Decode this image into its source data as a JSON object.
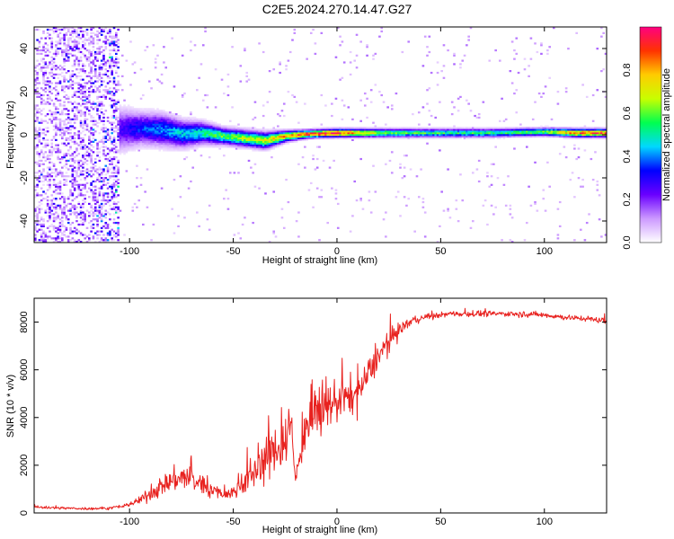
{
  "title": "C2E5.2024.270.14.47.G27",
  "chart_data": [
    {
      "type": "heatmap",
      "xlabel": "Height of straight line (km)",
      "ylabel": "Frequency (Hz)",
      "xlim": [
        -146,
        130
      ],
      "ylim": [
        -50,
        50
      ],
      "xticks": [
        -100,
        -50,
        0,
        50,
        100
      ],
      "yticks": [
        -40,
        -20,
        0,
        20,
        40
      ],
      "colorbar": {
        "label": "Normalized spectral amplitude",
        "range": [
          0.0,
          1.0
        ],
        "ticks": [
          0.0,
          0.2,
          0.4,
          0.6,
          0.8
        ],
        "tick_labels": [
          "0.0",
          "0.2",
          "0.4",
          "0.6",
          "0.8"
        ],
        "colormap": [
          "#ffffff",
          "#cc99ff",
          "#6a00ff",
          "#0000ff",
          "#00d8ff",
          "#00ff50",
          "#c8ff00",
          "#ffcc00",
          "#ff3300",
          "#ff0080"
        ]
      },
      "ridge": [
        {
          "x": -146,
          "freq_center": 0.0,
          "freq_spread": 45.0,
          "amplitude": 0.15
        },
        {
          "x": -120,
          "freq_center": 1.0,
          "freq_spread": 40.0,
          "amplitude": 0.18
        },
        {
          "x": -105,
          "freq_center": 2.0,
          "freq_spread": 8.0,
          "amplitude": 0.25
        },
        {
          "x": -95,
          "freq_center": 2.5,
          "freq_spread": 6.0,
          "amplitude": 0.35
        },
        {
          "x": -85,
          "freq_center": 2.0,
          "freq_spread": 6.0,
          "amplitude": 0.4
        },
        {
          "x": -75,
          "freq_center": 0.0,
          "freq_spread": 5.0,
          "amplitude": 0.45
        },
        {
          "x": -65,
          "freq_center": 0.5,
          "freq_spread": 4.0,
          "amplitude": 0.5
        },
        {
          "x": -55,
          "freq_center": -1.0,
          "freq_spread": 3.0,
          "amplitude": 0.6
        },
        {
          "x": -45,
          "freq_center": -2.0,
          "freq_spread": 3.0,
          "amplitude": 0.65
        },
        {
          "x": -35,
          "freq_center": -3.0,
          "freq_spread": 3.0,
          "amplitude": 0.7
        },
        {
          "x": -25,
          "freq_center": -1.0,
          "freq_spread": 2.0,
          "amplitude": 0.8
        },
        {
          "x": -15,
          "freq_center": 0.0,
          "freq_spread": 1.5,
          "amplitude": 0.9
        },
        {
          "x": 0,
          "freq_center": 0.5,
          "freq_spread": 1.5,
          "amplitude": 0.95
        },
        {
          "x": 25,
          "freq_center": 0.5,
          "freq_spread": 1.5,
          "amplitude": 0.6
        },
        {
          "x": 50,
          "freq_center": 0.5,
          "freq_spread": 1.5,
          "amplitude": 0.55
        },
        {
          "x": 75,
          "freq_center": 0.5,
          "freq_spread": 1.5,
          "amplitude": 0.55
        },
        {
          "x": 100,
          "freq_center": 1.0,
          "freq_spread": 1.5,
          "amplitude": 0.6
        },
        {
          "x": 115,
          "freq_center": 0.5,
          "freq_spread": 1.5,
          "amplitude": 0.9
        },
        {
          "x": 130,
          "freq_center": 0.5,
          "freq_spread": 1.5,
          "amplitude": 0.9
        }
      ]
    },
    {
      "type": "line",
      "xlabel": "Height of straight line (km)",
      "ylabel": "SNR (10 * v/v)",
      "xlim": [
        -146,
        130
      ],
      "ylim": [
        0,
        9000
      ],
      "xticks": [
        -100,
        -50,
        0,
        50,
        100
      ],
      "yticks": [
        0,
        2000,
        4000,
        6000,
        8000
      ],
      "series": [
        {
          "color": "#e8221f",
          "x": [
            -146,
            -140,
            -130,
            -120,
            -110,
            -105,
            -100,
            -95,
            -90,
            -85,
            -80,
            -75,
            -70,
            -65,
            -60,
            -55,
            -50,
            -45,
            -40,
            -35,
            -30,
            -25,
            -22,
            -20,
            -15,
            -10,
            -5,
            0,
            5,
            10,
            15,
            20,
            25,
            30,
            35,
            40,
            45,
            50,
            55,
            60,
            70,
            80,
            90,
            100,
            110,
            120,
            130
          ],
          "y": [
            250,
            220,
            200,
            180,
            200,
            260,
            350,
            550,
            800,
            1100,
            1350,
            1500,
            1400,
            1200,
            950,
            800,
            850,
            1300,
            1700,
            2200,
            2600,
            3200,
            3600,
            1400,
            3700,
            4100,
            4400,
            4800,
            4800,
            5000,
            5800,
            6600,
            7200,
            7700,
            8000,
            8150,
            8250,
            8300,
            8350,
            8350,
            8350,
            8350,
            8350,
            8300,
            8200,
            8150,
            8050
          ],
          "noise_amplitude": [
            120,
            120,
            120,
            120,
            120,
            150,
            200,
            400,
            600,
            900,
            1100,
            1200,
            1100,
            1000,
            700,
            500,
            600,
            1200,
            1700,
            2000,
            2200,
            2500,
            2600,
            600,
            2200,
            2200,
            2000,
            2000,
            1800,
            1600,
            1400,
            1000,
            800,
            600,
            400,
            300,
            250,
            250,
            250,
            250,
            250,
            250,
            300,
            250,
            250,
            250,
            250
          ]
        }
      ]
    }
  ]
}
